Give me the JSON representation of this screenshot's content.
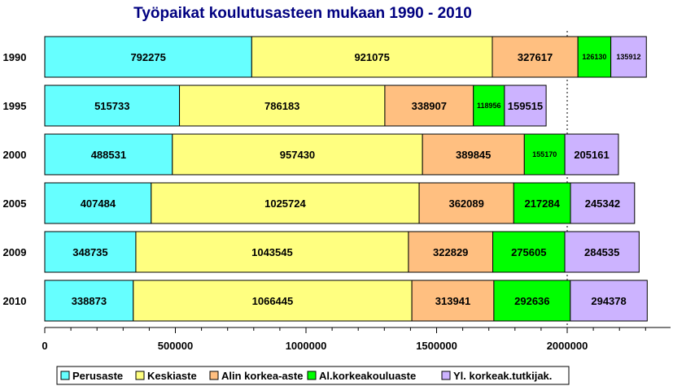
{
  "chart_data": {
    "type": "bar",
    "orientation": "horizontal",
    "stacked": true,
    "title": "Työpaikat koulutusasteen mukaan 1990 - 2010",
    "categories": [
      "1990",
      "1995",
      "2000",
      "2005",
      "2009",
      "2010"
    ],
    "series": [
      {
        "name": "Perusaste",
        "color": "#66ffff",
        "values": [
          792275,
          515733,
          488531,
          407484,
          348735,
          338873
        ]
      },
      {
        "name": "Keskiaste",
        "color": "#ffff80",
        "values": [
          921075,
          786183,
          957430,
          1025724,
          1043545,
          1066445
        ]
      },
      {
        "name": "Alin korkea-aste",
        "color": "#ffbf80",
        "values": [
          327617,
          338907,
          389845,
          362089,
          322829,
          313941
        ]
      },
      {
        "name": "Al.korkeakouluaste",
        "color": "#00ff00",
        "values": [
          126130,
          118956,
          155170,
          217284,
          275605,
          292636
        ]
      },
      {
        "name": "Yl. korkeak.tutkijak.",
        "color": "#ccb3ff",
        "values": [
          135912,
          159515,
          205161,
          245342,
          284535,
          294378
        ]
      }
    ],
    "x_ticks": [
      "0",
      "500000",
      "1000000",
      "1500000",
      "2000000"
    ],
    "xlim": [
      0,
      2400000
    ],
    "grid": "dotted vertical at 2000000",
    "legend": "bottom"
  }
}
